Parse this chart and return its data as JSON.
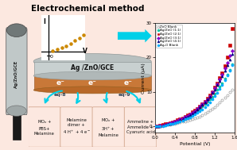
{
  "title": "Electrochemical method",
  "xlabel": "Potential (V)",
  "ylabel": "Current (μA)",
  "xlim": [
    0.0,
    1.6
  ],
  "ylim": [
    -2,
    30
  ],
  "xticks": [
    0.0,
    0.4,
    0.8,
    1.2,
    1.6
  ],
  "yticks": [
    0,
    10,
    20,
    30
  ],
  "bg_color": "#fce8e0",
  "series": [
    {
      "label": "ZnO Blank",
      "color": "#888888",
      "marker": "o",
      "filled": false,
      "x": [
        0.0,
        0.05,
        0.1,
        0.15,
        0.2,
        0.25,
        0.3,
        0.35,
        0.4,
        0.45,
        0.5,
        0.55,
        0.6,
        0.65,
        0.7,
        0.75,
        0.8,
        0.85,
        0.9,
        0.95,
        1.0,
        1.05,
        1.1,
        1.15,
        1.2,
        1.25,
        1.3,
        1.35,
        1.4,
        1.45,
        1.5,
        1.55
      ],
      "y": [
        0.0,
        0.0,
        0.1,
        0.1,
        0.2,
        0.3,
        0.4,
        0.5,
        0.6,
        0.8,
        1.0,
        1.2,
        1.4,
        1.6,
        1.8,
        2.0,
        2.2,
        2.5,
        2.8,
        3.2,
        3.6,
        4.0,
        4.5,
        5.0,
        5.5,
        6.2,
        6.8,
        7.5,
        8.2,
        9.0,
        9.8,
        10.5
      ]
    },
    {
      "label": "Ag/ZnO (1:1)",
      "color": "#00c8a0",
      "marker": "o",
      "filled": true,
      "x": [
        0.0,
        0.05,
        0.1,
        0.15,
        0.2,
        0.25,
        0.3,
        0.35,
        0.4,
        0.45,
        0.5,
        0.55,
        0.6,
        0.65,
        0.7,
        0.75,
        0.8,
        0.85,
        0.9,
        0.95,
        1.0,
        1.05,
        1.1,
        1.15,
        1.2,
        1.25,
        1.3,
        1.35,
        1.4,
        1.45,
        1.5,
        1.55
      ],
      "y": [
        0.0,
        0.0,
        0.1,
        0.2,
        0.3,
        0.5,
        0.7,
        0.9,
        1.1,
        1.4,
        1.7,
        2.0,
        2.3,
        2.7,
        3.1,
        3.5,
        4.0,
        4.5,
        5.0,
        5.6,
        6.3,
        7.0,
        7.8,
        8.6,
        9.5,
        10.5,
        11.5,
        12.5,
        13.8,
        15.0,
        16.5,
        18.0
      ]
    },
    {
      "label": "Ag/ZnO (2:1)",
      "color": "#cc0000",
      "marker": "s",
      "filled": true,
      "x": [
        0.0,
        0.05,
        0.1,
        0.15,
        0.2,
        0.25,
        0.3,
        0.35,
        0.4,
        0.45,
        0.5,
        0.55,
        0.6,
        0.65,
        0.7,
        0.75,
        0.8,
        0.85,
        0.9,
        0.95,
        1.0,
        1.05,
        1.1,
        1.15,
        1.2,
        1.25,
        1.3,
        1.35,
        1.4,
        1.45,
        1.5,
        1.55
      ],
      "y": [
        0.0,
        0.0,
        0.2,
        0.3,
        0.5,
        0.7,
        0.9,
        1.1,
        1.4,
        1.7,
        2.0,
        2.3,
        2.7,
        3.1,
        3.5,
        4.0,
        4.5,
        5.1,
        5.7,
        6.4,
        7.2,
        8.0,
        9.0,
        10.0,
        11.2,
        12.5,
        14.0,
        15.5,
        17.5,
        20.0,
        23.5,
        28.5
      ]
    },
    {
      "label": "Ag/ZnO (3:1)",
      "color": "#8800cc",
      "marker": "D",
      "filled": true,
      "x": [
        0.0,
        0.05,
        0.1,
        0.15,
        0.2,
        0.25,
        0.3,
        0.35,
        0.4,
        0.45,
        0.5,
        0.55,
        0.6,
        0.65,
        0.7,
        0.75,
        0.8,
        0.85,
        0.9,
        0.95,
        1.0,
        1.05,
        1.1,
        1.15,
        1.2,
        1.25,
        1.3,
        1.35,
        1.4,
        1.45,
        1.5,
        1.55
      ],
      "y": [
        0.0,
        0.0,
        0.1,
        0.2,
        0.4,
        0.6,
        0.8,
        1.0,
        1.3,
        1.6,
        1.9,
        2.2,
        2.6,
        3.0,
        3.4,
        3.9,
        4.4,
        5.0,
        5.6,
        6.3,
        7.0,
        7.9,
        8.8,
        9.8,
        11.0,
        12.2,
        13.5,
        15.0,
        16.8,
        18.5,
        20.5,
        22.0
      ]
    },
    {
      "label": "Ag/ZnO (4:1)",
      "color": "#000080",
      "marker": "^",
      "filled": true,
      "x": [
        0.0,
        0.05,
        0.1,
        0.15,
        0.2,
        0.25,
        0.3,
        0.35,
        0.4,
        0.45,
        0.5,
        0.55,
        0.6,
        0.65,
        0.7,
        0.75,
        0.8,
        0.85,
        0.9,
        0.95,
        1.0,
        1.05,
        1.1,
        1.15,
        1.2,
        1.25,
        1.3,
        1.35,
        1.4,
        1.45,
        1.5,
        1.55
      ],
      "y": [
        0.0,
        0.0,
        0.0,
        0.1,
        0.3,
        0.5,
        0.7,
        0.9,
        1.1,
        1.4,
        1.7,
        2.0,
        2.4,
        2.8,
        3.2,
        3.7,
        4.2,
        4.8,
        5.4,
        6.1,
        6.8,
        7.7,
        8.6,
        9.6,
        10.7,
        11.9,
        13.2,
        14.6,
        16.2,
        17.8,
        19.5,
        21.0
      ]
    },
    {
      "label": "Ag₂O Blank",
      "color": "#00aaff",
      "marker": "o",
      "filled": true,
      "x": [
        0.0,
        0.05,
        0.1,
        0.15,
        0.2,
        0.25,
        0.3,
        0.35,
        0.4,
        0.45,
        0.5,
        0.55,
        0.6,
        0.65,
        0.7,
        0.75,
        0.8,
        0.85,
        0.9,
        0.95,
        1.0,
        1.05,
        1.1,
        1.15,
        1.2,
        1.25,
        1.3,
        1.35,
        1.4,
        1.45,
        1.5,
        1.55
      ],
      "y": [
        0.0,
        0.0,
        -0.1,
        0.0,
        0.2,
        0.3,
        0.5,
        0.7,
        0.9,
        1.1,
        1.3,
        1.6,
        1.9,
        2.2,
        2.5,
        2.9,
        3.3,
        3.8,
        4.3,
        4.9,
        5.5,
        6.2,
        6.9,
        7.8,
        8.7,
        9.7,
        10.8,
        12.0,
        13.3,
        14.7,
        16.2,
        17.8
      ]
    }
  ],
  "arrow_color": "#00d0e8",
  "electrode_gray": "#c0c8c8",
  "electrode_dark": "#707878",
  "electrode_brown": "#c87838",
  "handle_black": "#1a1a1a",
  "box_bg": "#fce8e0",
  "box_edge": "#e8c8b0"
}
